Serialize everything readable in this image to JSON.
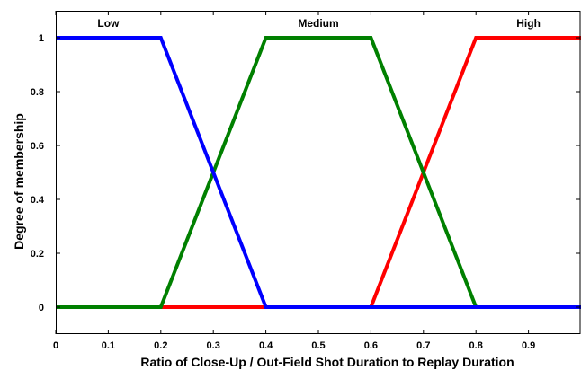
{
  "chart_data": {
    "type": "line",
    "title": "",
    "xlabel": "Ratio of Close-Up / Out-Field Shot Duration to Replay Duration",
    "ylabel": "Degree of membership",
    "xlim": [
      0,
      1
    ],
    "ylim": [
      -0.1,
      1.1
    ],
    "x_ticks": [
      0,
      0.1,
      0.2,
      0.3,
      0.4,
      0.5,
      0.6,
      0.7,
      0.8,
      0.9
    ],
    "x_tick_labels": [
      "0",
      "0.1",
      "0.2",
      "0.3",
      "0.4",
      "0.5",
      "0.6",
      "0.7",
      "0.8",
      "0.9"
    ],
    "y_ticks": [
      0,
      0.2,
      0.4,
      0.6,
      0.8,
      1
    ],
    "y_tick_labels": [
      "0",
      "0.2",
      "0.4",
      "0.6",
      "0.8",
      "1"
    ],
    "grid": false,
    "series": [
      {
        "name": "Low",
        "color": "#0000ff",
        "label_x": 0.1,
        "x": [
          0,
          0.2,
          0.4,
          0.6,
          0.8,
          1.0
        ],
        "y": [
          1,
          1,
          0,
          0,
          0,
          0
        ]
      },
      {
        "name": "Medium",
        "color": "#008000",
        "label_x": 0.5,
        "x": [
          0,
          0.2,
          0.4,
          0.6,
          0.8,
          1.0
        ],
        "y": [
          0,
          0,
          1,
          1,
          0,
          0
        ]
      },
      {
        "name": "High",
        "color": "#ff0000",
        "label_x": 0.9,
        "x": [
          0,
          0.2,
          0.4,
          0.6,
          0.8,
          1.0
        ],
        "y": [
          0,
          0,
          0,
          0,
          1,
          1
        ]
      }
    ]
  }
}
